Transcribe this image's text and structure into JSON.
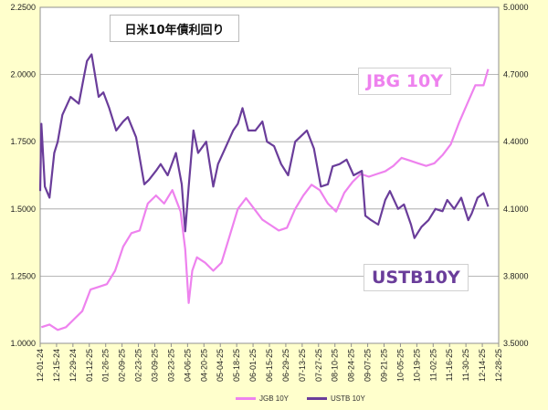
{
  "chart_data": {
    "type": "line",
    "title": "日米10年債利回り",
    "x_ticks": [
      "12-01-24",
      "12-15-24",
      "12-29-24",
      "01-12-25",
      "01-26-25",
      "02-09-25",
      "02-23-25",
      "03-09-25",
      "03-23-25",
      "04-06-25",
      "04-20-25",
      "05-04-25",
      "05-18-25",
      "06-01-25",
      "06-15-25",
      "06-29-25",
      "07-13-25",
      "07-27-25",
      "08-10-25",
      "08-24-25",
      "09-07-25",
      "09-21-25",
      "10-05-25",
      "10-19-25",
      "11-02-25",
      "11-16-25",
      "11-30-25",
      "12-14-25",
      "12-28-25"
    ],
    "y_left": {
      "ylim": [
        1.0,
        2.25
      ],
      "ticks": [
        "1.0000",
        "1.2500",
        "1.5000",
        "1.7500",
        "2.0000",
        "2.2500"
      ]
    },
    "y_right": {
      "ylim": [
        3.5,
        5.0
      ],
      "ticks": [
        "3.5000",
        "3.8000",
        "4.1000",
        "4.4000",
        "4.7000",
        "5.0000"
      ]
    },
    "grid": "horizontal",
    "legend_placement": "bottom",
    "series": [
      {
        "name": "JGB 10Y",
        "axis": "left",
        "color": "#ee82ee",
        "x": [
          "12-02-24",
          "12-09-24",
          "12-16-24",
          "12-23-24",
          "12-30-24",
          "01-06-25",
          "01-13-25",
          "01-20-25",
          "01-27-25",
          "02-03-25",
          "02-10-25",
          "02-17-25",
          "02-24-25",
          "03-03-25",
          "03-10-25",
          "03-17-25",
          "03-24-25",
          "03-31-25",
          "04-04-25",
          "04-07-25",
          "04-10-25",
          "04-14-25",
          "04-21-25",
          "04-28-25",
          "05-05-25",
          "05-12-25",
          "05-19-25",
          "05-26-25",
          "06-02-25",
          "06-09-25",
          "06-16-25",
          "06-23-25",
          "06-30-25",
          "07-07-25",
          "07-14-25",
          "07-21-25",
          "07-28-25",
          "08-04-25",
          "08-11-25",
          "08-18-25",
          "08-25-25",
          "09-01-25",
          "09-08-25",
          "09-15-25",
          "09-22-25",
          "09-29-25",
          "10-06-25",
          "10-13-25",
          "10-20-25",
          "10-27-25",
          "11-03-25",
          "11-10-25",
          "11-17-25",
          "11-24-25",
          "12-01-25",
          "12-08-25",
          "12-15-25",
          "12-19-25"
        ],
        "values": [
          1.06,
          1.07,
          1.05,
          1.06,
          1.09,
          1.12,
          1.2,
          1.21,
          1.22,
          1.27,
          1.36,
          1.41,
          1.42,
          1.52,
          1.55,
          1.52,
          1.57,
          1.49,
          1.35,
          1.15,
          1.27,
          1.32,
          1.3,
          1.27,
          1.3,
          1.4,
          1.5,
          1.54,
          1.5,
          1.46,
          1.44,
          1.42,
          1.43,
          1.5,
          1.55,
          1.59,
          1.57,
          1.52,
          1.49,
          1.56,
          1.6,
          1.63,
          1.62,
          1.63,
          1.64,
          1.66,
          1.69,
          1.68,
          1.67,
          1.66,
          1.67,
          1.7,
          1.74,
          1.82,
          1.89,
          1.96,
          1.96,
          2.02
        ]
      },
      {
        "name": "USTB 10Y",
        "axis": "right",
        "color": "#6a3d9a",
        "x": [
          "12-01-24",
          "12-02-24",
          "12-05-24",
          "12-09-24",
          "12-13-24",
          "12-16-24",
          "12-20-24",
          "12-27-24",
          "01-03-25",
          "01-07-25",
          "01-10-25",
          "01-14-25",
          "01-20-25",
          "01-24-25",
          "01-29-25",
          "02-04-25",
          "02-10-25",
          "02-14-25",
          "02-21-25",
          "02-28-25",
          "03-04-25",
          "03-10-25",
          "03-14-25",
          "03-20-25",
          "03-27-25",
          "04-01-25",
          "04-04-25",
          "04-07-25",
          "04-11-25",
          "04-15-25",
          "04-22-25",
          "04-28-25",
          "05-02-25",
          "05-09-25",
          "05-15-25",
          "05-19-25",
          "05-23-25",
          "05-28-25",
          "06-03-25",
          "06-09-25",
          "06-13-25",
          "06-19-25",
          "06-25-25",
          "07-01-25",
          "07-07-25",
          "07-11-25",
          "07-17-25",
          "07-23-25",
          "07-29-25",
          "08-04-25",
          "08-08-25",
          "08-14-25",
          "08-20-25",
          "08-26-25",
          "09-02-25",
          "09-05-25",
          "09-10-25",
          "09-16-25",
          "09-22-25",
          "09-26-25",
          "10-03-25",
          "10-08-25",
          "10-14-25",
          "10-17-25",
          "10-23-25",
          "10-29-25",
          "11-04-25",
          "11-10-25",
          "11-14-25",
          "11-20-25",
          "11-26-25",
          "12-02-25",
          "12-05-25",
          "12-10-25",
          "12-15-25",
          "12-19-25"
        ],
        "values": [
          4.18,
          4.48,
          4.2,
          4.15,
          4.35,
          4.4,
          4.52,
          4.6,
          4.57,
          4.68,
          4.76,
          4.79,
          4.6,
          4.62,
          4.55,
          4.45,
          4.49,
          4.51,
          4.42,
          4.21,
          4.23,
          4.27,
          4.3,
          4.25,
          4.35,
          4.21,
          4.0,
          4.2,
          4.45,
          4.35,
          4.4,
          4.2,
          4.3,
          4.38,
          4.45,
          4.48,
          4.55,
          4.45,
          4.45,
          4.49,
          4.4,
          4.38,
          4.3,
          4.25,
          4.4,
          4.42,
          4.45,
          4.37,
          4.2,
          4.21,
          4.29,
          4.3,
          4.32,
          4.25,
          4.27,
          4.07,
          4.05,
          4.03,
          4.14,
          4.18,
          4.1,
          4.12,
          4.03,
          3.97,
          4.02,
          4.05,
          4.1,
          4.09,
          4.14,
          4.1,
          4.15,
          4.05,
          4.08,
          4.15,
          4.17,
          4.11
        ]
      }
    ],
    "annotations": [
      "JBG 10Y",
      "USTB10Y"
    ]
  }
}
